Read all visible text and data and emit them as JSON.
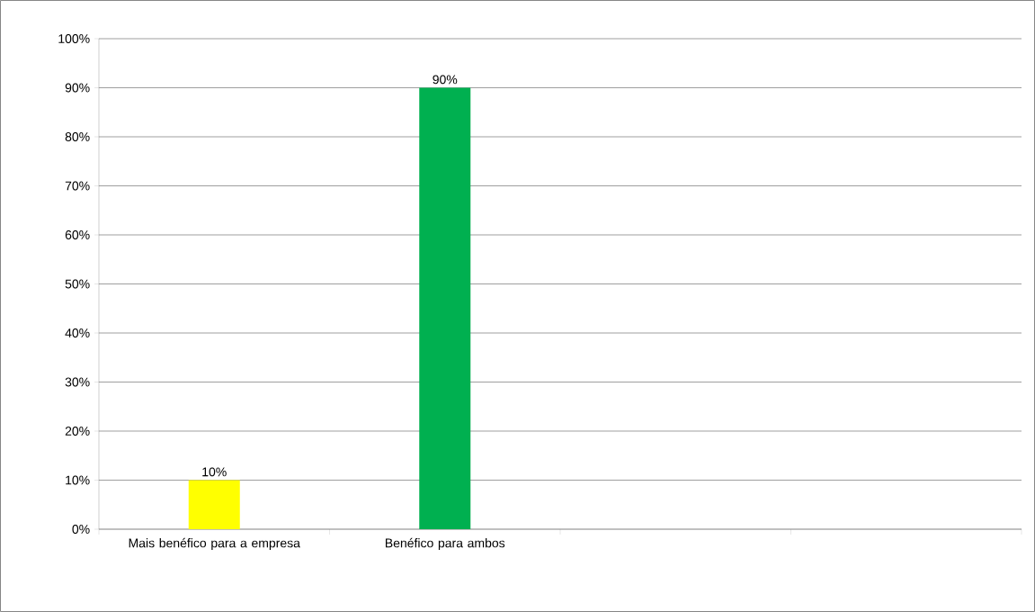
{
  "chart_data": {
    "type": "bar",
    "categories": [
      "Mais benéfico para a empresa",
      "Benéfico para ambos",
      null,
      null
    ],
    "values": [
      10,
      90,
      null,
      null
    ],
    "colors": [
      "#ffff00",
      "#00b050",
      "#00b050",
      "#00b050"
    ],
    "value_labels": [
      "10%",
      "90%",
      null,
      null
    ],
    "ylim": [
      0,
      100
    ],
    "yticks": [
      {
        "value": 0,
        "label": "0%"
      },
      {
        "value": 10,
        "label": "10%"
      },
      {
        "value": 20,
        "label": "20%"
      },
      {
        "value": 30,
        "label": "30%"
      },
      {
        "value": 40,
        "label": "40%"
      },
      {
        "value": 50,
        "label": "50%"
      },
      {
        "value": 60,
        "label": "60%"
      },
      {
        "value": 70,
        "label": "70%"
      },
      {
        "value": 80,
        "label": "80%"
      },
      {
        "value": 90,
        "label": "90%"
      },
      {
        "value": 100,
        "label": "100%"
      }
    ],
    "grid": "y"
  }
}
